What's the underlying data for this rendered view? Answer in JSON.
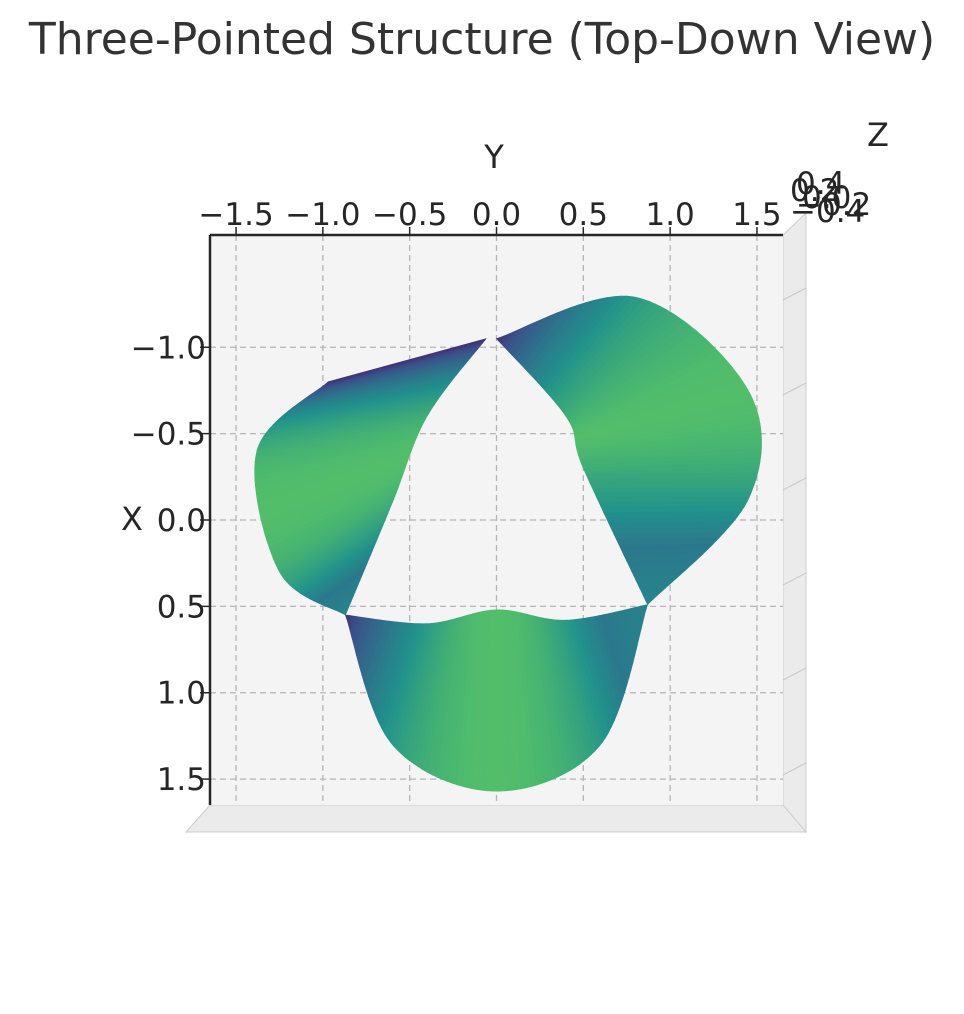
{
  "chart_data": {
    "type": "surface3d",
    "title": "Three-Pointed Structure (Top-Down View)",
    "view": "top-down",
    "xlabel": "X",
    "ylabel": "Y",
    "zlabel": "Z",
    "xlim": [
      -1.65,
      1.65
    ],
    "ylim": [
      -1.65,
      1.65
    ],
    "x_ticks": [
      "−1.0",
      "−0.5",
      "0.0",
      "0.5",
      "1.0",
      "1.5"
    ],
    "y_ticks": [
      "−1.5",
      "−1.0",
      "−0.5",
      "0.0",
      "0.5",
      "1.0",
      "1.5"
    ],
    "z_ticks": [
      "−0.4",
      "−0.2",
      "0.0",
      "0.2",
      "0.4"
    ],
    "colormap": "viridis",
    "colormap_stops": [
      "#440154",
      "#3b528b",
      "#21918c",
      "#5ec962",
      "#fde725"
    ],
    "grid": true,
    "pane_color": "#f2f2f2",
    "lobes": [
      {
        "name": "lobe-left",
        "outer": [
          [
            -0.97,
            -0.8
          ],
          [
            -1.38,
            -0.4
          ],
          [
            -1.25,
            0.3
          ],
          [
            -0.87,
            0.55
          ]
        ],
        "inner": [
          [
            -0.06,
            -1.05
          ],
          [
            -0.4,
            -0.6
          ],
          [
            -0.6,
            -0.1
          ],
          [
            -0.87,
            0.55
          ]
        ]
      },
      {
        "name": "lobe-right",
        "outer": [
          [
            0.0,
            -1.05
          ],
          [
            0.8,
            -1.29
          ],
          [
            1.45,
            -0.75
          ],
          [
            1.45,
            -0.12
          ],
          [
            0.87,
            0.49
          ]
        ],
        "inner": [
          [
            0.0,
            -1.05
          ],
          [
            0.4,
            -0.6
          ],
          [
            0.5,
            -0.3
          ],
          [
            0.87,
            0.49
          ]
        ]
      },
      {
        "name": "lobe-bottom",
        "outer": [
          [
            -0.87,
            0.55
          ],
          [
            -0.6,
            1.3
          ],
          [
            0.0,
            1.57
          ],
          [
            0.6,
            1.3
          ],
          [
            0.87,
            0.49
          ]
        ],
        "inner": [
          [
            -0.87,
            0.55
          ],
          [
            -0.4,
            0.6
          ],
          [
            0.0,
            0.52
          ],
          [
            0.4,
            0.58
          ],
          [
            0.87,
            0.49
          ]
        ]
      }
    ]
  }
}
